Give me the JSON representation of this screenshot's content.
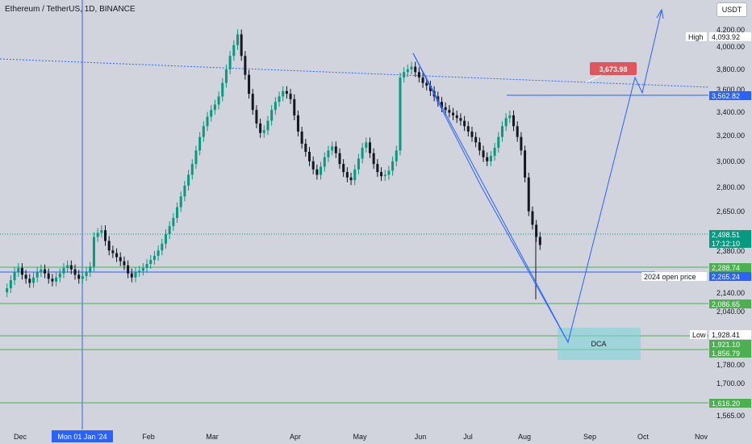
{
  "header": {
    "title": "Ethereum / TetherUS, 1D, BINANCE",
    "quote": "USDT"
  },
  "colors": {
    "background": "#d1d4dc",
    "up": "#089981",
    "down": "#131722",
    "line": "#2962ff",
    "support": "#4caf50",
    "resistance_tag": "#e0555e",
    "dca_box": "#7dd3d8"
  },
  "chart_data": {
    "type": "candlestick",
    "title": "Ethereum / TetherUS, 1D, BINANCE",
    "y_ticks": [
      "1,565.00",
      "1,700.00",
      "1,780.00",
      "2,040.00",
      "2,140.00",
      "2,380.00",
      "2,650.00",
      "2,800.00",
      "3,000.00",
      "3,200.00",
      "3,400.00",
      "3,600.00",
      "3,800.00",
      "4,000.00",
      "4,200.00"
    ],
    "x_ticks": [
      "Dec",
      "Feb",
      "Mar",
      "Apr",
      "May",
      "Jun",
      "Jul",
      "Aug",
      "Sep",
      "Oct",
      "Nov"
    ],
    "crosshair_date": "Mon 01 Jan '24",
    "price_levels": [
      {
        "label": "High",
        "value": "4,093.92"
      },
      {
        "label": "",
        "value": "3,562.82"
      },
      {
        "label": "",
        "value": "2,498.51",
        "sub": "17:12:10"
      },
      {
        "label": "",
        "value": "2,288.74"
      },
      {
        "label": "2024 open price",
        "value": "2,265.24"
      },
      {
        "label": "",
        "value": "2,086.65"
      },
      {
        "label": "Low",
        "value": "1,928.41"
      },
      {
        "label": "",
        "value": "1,921.10"
      },
      {
        "label": "",
        "value": "1,856.79"
      },
      {
        "label": "",
        "value": "1,616.20"
      }
    ],
    "target_label": "3,673.98",
    "zone_label": "DCA",
    "series_close": [
      2150,
      2180,
      2240,
      2300,
      2330,
      2280,
      2250,
      2220,
      2260,
      2300,
      2320,
      2290,
      2250,
      2230,
      2260,
      2290,
      2330,
      2350,
      2320,
      2280,
      2250,
      2270,
      2300,
      2340,
      2560,
      2590,
      2610,
      2530,
      2460,
      2440,
      2410,
      2380,
      2350,
      2290,
      2260,
      2300,
      2310,
      2330,
      2360,
      2390,
      2420,
      2460,
      2510,
      2580,
      2640,
      2700,
      2780,
      2860,
      2940,
      3020,
      3100,
      3200,
      3300,
      3380,
      3450,
      3500,
      3540,
      3600,
      3700,
      3800,
      3900,
      3980,
      4060,
      3900,
      3760,
      3620,
      3500,
      3400,
      3330,
      3350,
      3420,
      3500,
      3560,
      3600,
      3640,
      3620,
      3580,
      3460,
      3340,
      3250,
      3190,
      3120,
      3060,
      3020,
      3080,
      3150,
      3200,
      3230,
      3180,
      3100,
      3040,
      3000,
      2980,
      3060,
      3140,
      3220,
      3260,
      3180,
      3100,
      3040,
      3010,
      3020,
      3050,
      3120,
      3200,
      3740,
      3780,
      3800,
      3820,
      3780,
      3740,
      3700,
      3680,
      3640,
      3600,
      3560,
      3520,
      3500,
      3480,
      3460,
      3440,
      3420,
      3380,
      3340,
      3300,
      3260,
      3200,
      3150,
      3120,
      3160,
      3220,
      3300,
      3380,
      3440,
      3460,
      3380,
      3300,
      3200,
      3000,
      2750,
      2650,
      2560,
      2500
    ]
  }
}
